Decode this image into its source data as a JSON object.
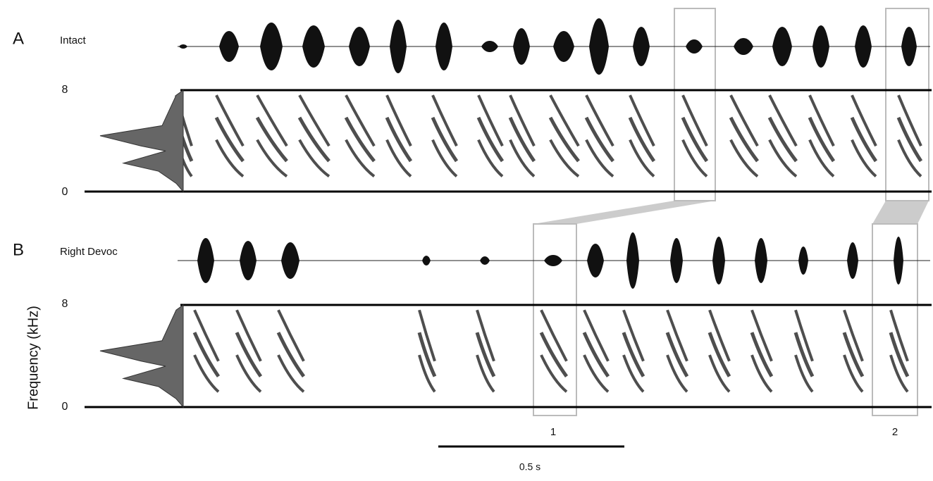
{
  "panels": [
    {
      "label": "A",
      "title": "Intact",
      "freq_top": "8",
      "freq_bottom": "0"
    },
    {
      "label": "B",
      "title": "Right Devoc",
      "freq_top": "8",
      "freq_bottom": "0"
    }
  ],
  "y_axis_label": "Frequency (kHz)",
  "highlights": [
    "1",
    "2"
  ],
  "scale_bar": "0.5 s"
}
